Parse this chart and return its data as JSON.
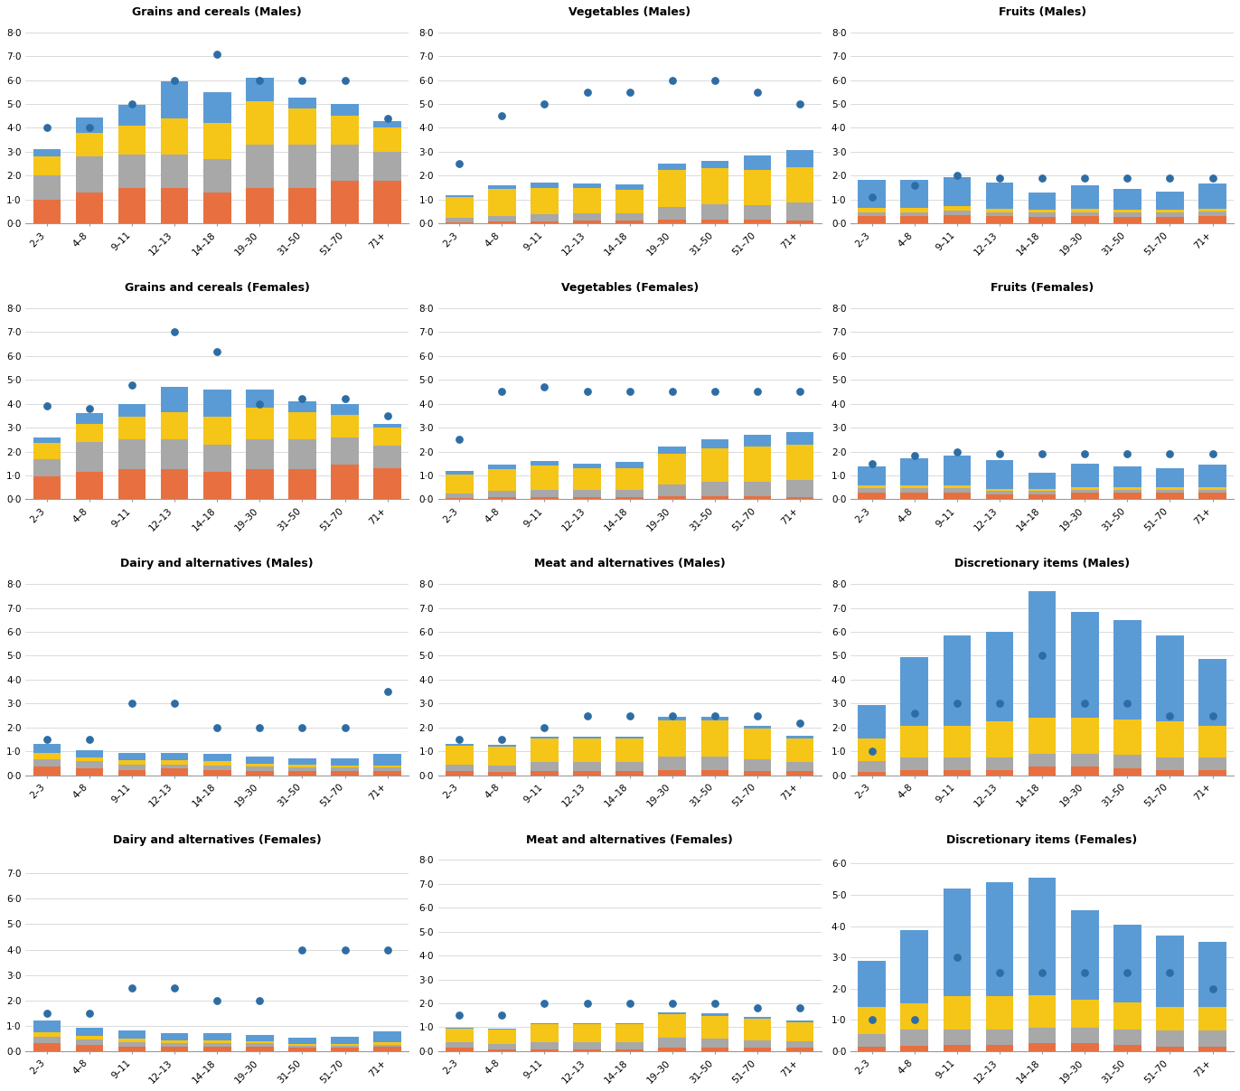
{
  "age_groups": [
    "2–3",
    "4–8",
    "9–11",
    "12–13",
    "14–18",
    "19–30",
    "31–50",
    "51–70",
    "71+"
  ],
  "colors": {
    "breakfast": "#E87040",
    "lunch": "#A8A8A8",
    "dinner": "#F5C518",
    "snack": "#5B9BD5",
    "dot": "#2E6DA4"
  },
  "subplots": [
    {
      "title": "Grains and cereals (Males)",
      "row": 0,
      "col": 0,
      "ylim": [
        0,
        8.5
      ],
      "yticks": [
        0.0,
        1.0,
        2.0,
        3.0,
        4.0,
        5.0,
        6.0,
        7.0,
        8.0
      ],
      "bars": {
        "breakfast": [
          1.0,
          1.3,
          1.5,
          1.5,
          1.3,
          1.5,
          1.5,
          1.8,
          1.8
        ],
        "lunch": [
          1.0,
          1.5,
          1.4,
          1.4,
          1.4,
          1.8,
          1.8,
          1.5,
          1.2
        ],
        "dinner": [
          0.8,
          1.0,
          1.2,
          1.5,
          1.5,
          1.8,
          1.5,
          1.2,
          1.0
        ],
        "snack": [
          0.3,
          0.65,
          0.85,
          1.55,
          1.3,
          1.0,
          0.45,
          0.5,
          0.3
        ]
      },
      "dots": [
        4.0,
        4.0,
        5.0,
        6.0,
        7.1,
        6.0,
        6.0,
        6.0,
        4.4
      ]
    },
    {
      "title": "Vegetables (Males)",
      "row": 0,
      "col": 1,
      "ylim": [
        0,
        8.5
      ],
      "yticks": [
        0.0,
        1.0,
        2.0,
        3.0,
        4.0,
        5.0,
        6.0,
        7.0,
        8.0
      ],
      "bars": {
        "breakfast": [
          0.05,
          0.08,
          0.1,
          0.12,
          0.12,
          0.15,
          0.15,
          0.15,
          0.12
        ],
        "lunch": [
          0.2,
          0.25,
          0.3,
          0.3,
          0.3,
          0.55,
          0.65,
          0.6,
          0.75
        ],
        "dinner": [
          0.85,
          1.1,
          1.1,
          1.05,
          1.0,
          1.55,
          1.5,
          1.5,
          1.5
        ],
        "snack": [
          0.1,
          0.15,
          0.2,
          0.2,
          0.2,
          0.25,
          0.3,
          0.6,
          0.7
        ]
      },
      "dots": [
        2.5,
        4.5,
        5.0,
        5.5,
        5.5,
        6.0,
        6.0,
        5.5,
        5.0
      ]
    },
    {
      "title": "Fruits (Males)",
      "row": 0,
      "col": 2,
      "ylim": [
        0,
        8.5
      ],
      "yticks": [
        0.0,
        1.0,
        2.0,
        3.0,
        4.0,
        5.0,
        6.0,
        7.0,
        8.0
      ],
      "bars": {
        "breakfast": [
          0.3,
          0.3,
          0.35,
          0.3,
          0.28,
          0.3,
          0.28,
          0.28,
          0.32
        ],
        "lunch": [
          0.18,
          0.18,
          0.2,
          0.18,
          0.18,
          0.18,
          0.18,
          0.18,
          0.18
        ],
        "dinner": [
          0.18,
          0.18,
          0.18,
          0.13,
          0.13,
          0.13,
          0.13,
          0.13,
          0.13
        ],
        "snack": [
          1.15,
          1.15,
          1.2,
          1.1,
          0.7,
          1.0,
          0.85,
          0.75,
          1.05
        ]
      },
      "dots": [
        1.1,
        1.6,
        2.0,
        1.9,
        1.9,
        1.9,
        1.9,
        1.9,
        1.9
      ]
    },
    {
      "title": "Grains and cereals (Females)",
      "row": 1,
      "col": 0,
      "ylim": [
        0,
        8.5
      ],
      "yticks": [
        0.0,
        1.0,
        2.0,
        3.0,
        4.0,
        5.0,
        6.0,
        7.0,
        8.0
      ],
      "bars": {
        "breakfast": [
          0.95,
          1.15,
          1.25,
          1.25,
          1.15,
          1.25,
          1.25,
          1.45,
          1.3
        ],
        "lunch": [
          0.75,
          1.25,
          1.25,
          1.25,
          1.15,
          1.25,
          1.25,
          1.15,
          0.95
        ],
        "dinner": [
          0.65,
          0.75,
          0.95,
          1.15,
          1.15,
          1.35,
          1.15,
          0.95,
          0.75
        ],
        "snack": [
          0.25,
          0.45,
          0.55,
          1.05,
          1.15,
          0.75,
          0.45,
          0.45,
          0.15
        ]
      },
      "dots": [
        3.9,
        3.8,
        4.8,
        7.0,
        6.2,
        4.0,
        4.2,
        4.2,
        3.5
      ]
    },
    {
      "title": "Vegetables (Females)",
      "row": 1,
      "col": 1,
      "ylim": [
        0,
        8.5
      ],
      "yticks": [
        0.0,
        1.0,
        2.0,
        3.0,
        4.0,
        5.0,
        6.0,
        7.0,
        8.0
      ],
      "bars": {
        "breakfast": [
          0.05,
          0.08,
          0.1,
          0.1,
          0.1,
          0.12,
          0.12,
          0.12,
          0.1
        ],
        "lunch": [
          0.2,
          0.28,
          0.3,
          0.3,
          0.3,
          0.5,
          0.6,
          0.6,
          0.7
        ],
        "dinner": [
          0.8,
          0.9,
          1.0,
          0.9,
          0.9,
          1.3,
          1.4,
          1.5,
          1.5
        ],
        "snack": [
          0.15,
          0.18,
          0.2,
          0.2,
          0.25,
          0.3,
          0.4,
          0.5,
          0.5
        ]
      },
      "dots": [
        2.5,
        4.5,
        4.7,
        4.5,
        4.5,
        4.5,
        4.5,
        4.5,
        4.5
      ]
    },
    {
      "title": "Fruits (Females)",
      "row": 1,
      "col": 2,
      "ylim": [
        0,
        8.5
      ],
      "yticks": [
        0.0,
        1.0,
        2.0,
        3.0,
        4.0,
        5.0,
        6.0,
        7.0,
        8.0
      ],
      "bars": {
        "breakfast": [
          0.28,
          0.28,
          0.28,
          0.22,
          0.22,
          0.28,
          0.28,
          0.28,
          0.28
        ],
        "lunch": [
          0.18,
          0.18,
          0.18,
          0.13,
          0.13,
          0.13,
          0.13,
          0.13,
          0.13
        ],
        "dinner": [
          0.13,
          0.13,
          0.13,
          0.08,
          0.08,
          0.08,
          0.08,
          0.08,
          0.08
        ],
        "snack": [
          0.78,
          1.12,
          1.25,
          1.2,
          0.7,
          1.0,
          0.9,
          0.8,
          0.97
        ]
      },
      "dots": [
        1.5,
        1.85,
        2.0,
        1.9,
        1.9,
        1.9,
        1.9,
        1.9,
        1.9
      ]
    },
    {
      "title": "Dairy and alternatives (Males)",
      "row": 2,
      "col": 0,
      "ylim": [
        0,
        8.5
      ],
      "yticks": [
        0.0,
        1.0,
        2.0,
        3.0,
        4.0,
        5.0,
        6.0,
        7.0,
        8.0
      ],
      "bars": {
        "breakfast": [
          0.38,
          0.3,
          0.22,
          0.28,
          0.22,
          0.18,
          0.18,
          0.18,
          0.18
        ],
        "lunch": [
          0.28,
          0.28,
          0.22,
          0.18,
          0.18,
          0.18,
          0.13,
          0.13,
          0.13
        ],
        "dinner": [
          0.28,
          0.18,
          0.18,
          0.18,
          0.18,
          0.13,
          0.13,
          0.08,
          0.08
        ],
        "snack": [
          0.38,
          0.28,
          0.3,
          0.28,
          0.32,
          0.28,
          0.28,
          0.32,
          0.52
        ]
      },
      "dots": [
        1.5,
        1.5,
        3.0,
        3.0,
        2.0,
        2.0,
        2.0,
        2.0,
        3.5
      ]
    },
    {
      "title": "Meat and alternatives (Males)",
      "row": 2,
      "col": 1,
      "ylim": [
        0,
        8.5
      ],
      "yticks": [
        0.0,
        1.0,
        2.0,
        3.0,
        4.0,
        5.0,
        6.0,
        7.0,
        8.0
      ],
      "bars": {
        "breakfast": [
          0.18,
          0.13,
          0.18,
          0.18,
          0.18,
          0.22,
          0.22,
          0.18,
          0.18
        ],
        "lunch": [
          0.28,
          0.28,
          0.38,
          0.38,
          0.38,
          0.58,
          0.58,
          0.48,
          0.38
        ],
        "dinner": [
          0.78,
          0.78,
          0.98,
          0.98,
          0.98,
          1.48,
          1.48,
          1.28,
          0.98
        ],
        "snack": [
          0.08,
          0.08,
          0.08,
          0.08,
          0.08,
          0.18,
          0.18,
          0.13,
          0.13
        ]
      },
      "dots": [
        1.5,
        1.5,
        2.0,
        2.5,
        2.5,
        2.5,
        2.5,
        2.5,
        2.2
      ]
    },
    {
      "title": "Discretionary items (Males)",
      "row": 2,
      "col": 2,
      "ylim": [
        0,
        8.5
      ],
      "yticks": [
        0.0,
        1.0,
        2.0,
        3.0,
        4.0,
        5.0,
        6.0,
        7.0,
        8.0
      ],
      "bars": {
        "breakfast": [
          0.15,
          0.2,
          0.2,
          0.2,
          0.35,
          0.35,
          0.3,
          0.2,
          0.2
        ],
        "lunch": [
          0.45,
          0.55,
          0.55,
          0.55,
          0.55,
          0.55,
          0.55,
          0.55,
          0.55
        ],
        "dinner": [
          0.95,
          1.3,
          1.3,
          1.5,
          1.5,
          1.5,
          1.5,
          1.5,
          1.3
        ],
        "snack": [
          1.4,
          2.9,
          3.8,
          3.75,
          5.3,
          4.45,
          4.15,
          3.6,
          2.8
        ]
      },
      "dots": [
        1.0,
        2.6,
        3.0,
        3.0,
        5.0,
        3.0,
        3.0,
        2.5,
        2.5
      ]
    },
    {
      "title": "Dairy and alternatives (Females)",
      "row": 3,
      "col": 0,
      "ylim": [
        0,
        8.0
      ],
      "yticks": [
        0.0,
        1.0,
        2.0,
        3.0,
        4.0,
        5.0,
        6.0,
        7.0
      ],
      "bars": {
        "breakfast": [
          0.33,
          0.23,
          0.18,
          0.18,
          0.18,
          0.18,
          0.13,
          0.13,
          0.18
        ],
        "lunch": [
          0.23,
          0.23,
          0.18,
          0.13,
          0.13,
          0.13,
          0.08,
          0.08,
          0.08
        ],
        "dinner": [
          0.18,
          0.13,
          0.13,
          0.13,
          0.13,
          0.08,
          0.08,
          0.08,
          0.08
        ],
        "snack": [
          0.48,
          0.33,
          0.33,
          0.28,
          0.28,
          0.23,
          0.23,
          0.28,
          0.43
        ]
      },
      "dots": [
        1.5,
        1.5,
        2.5,
        2.5,
        2.0,
        2.0,
        4.0,
        4.0,
        4.0
      ]
    },
    {
      "title": "Meat and alternatives (Females)",
      "row": 3,
      "col": 1,
      "ylim": [
        0,
        8.5
      ],
      "yticks": [
        0.0,
        1.0,
        2.0,
        3.0,
        4.0,
        5.0,
        6.0,
        7.0,
        8.0
      ],
      "bars": {
        "breakfast": [
          0.13,
          0.08,
          0.08,
          0.08,
          0.08,
          0.13,
          0.13,
          0.13,
          0.13
        ],
        "lunch": [
          0.23,
          0.23,
          0.28,
          0.28,
          0.28,
          0.43,
          0.38,
          0.33,
          0.28
        ],
        "dinner": [
          0.58,
          0.58,
          0.78,
          0.78,
          0.78,
          0.98,
          0.98,
          0.88,
          0.78
        ],
        "snack": [
          0.04,
          0.04,
          0.04,
          0.04,
          0.04,
          0.08,
          0.08,
          0.08,
          0.08
        ]
      },
      "dots": [
        1.5,
        1.5,
        2.0,
        2.0,
        2.0,
        2.0,
        2.0,
        1.8,
        1.8
      ]
    },
    {
      "title": "Discretionary items (Females)",
      "row": 3,
      "col": 2,
      "ylim": [
        0,
        6.5
      ],
      "yticks": [
        0.0,
        1.0,
        2.0,
        3.0,
        4.0,
        5.0,
        6.0
      ],
      "bars": {
        "breakfast": [
          0.15,
          0.18,
          0.2,
          0.2,
          0.25,
          0.25,
          0.2,
          0.15,
          0.15
        ],
        "lunch": [
          0.4,
          0.5,
          0.5,
          0.5,
          0.5,
          0.5,
          0.5,
          0.5,
          0.5
        ],
        "dinner": [
          0.85,
          0.85,
          1.05,
          1.05,
          1.05,
          0.9,
          0.85,
          0.75,
          0.75
        ],
        "snack": [
          1.5,
          2.35,
          3.45,
          3.65,
          3.75,
          2.85,
          2.5,
          2.3,
          2.1
        ]
      },
      "dots": [
        1.0,
        1.0,
        3.0,
        2.5,
        2.5,
        2.5,
        2.5,
        2.5,
        2.0
      ]
    }
  ]
}
